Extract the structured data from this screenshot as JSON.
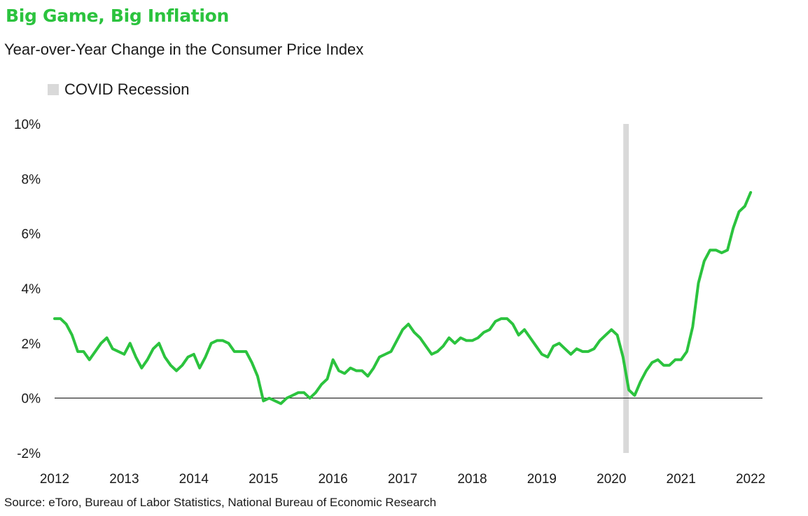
{
  "title": "Big Game, Big Inflation",
  "subtitle": "Year-over-Year Change in the Consumer Price Index",
  "source": "Source: eToro, Bureau of Labor Statistics, National Bureau of Economic Research",
  "colors": {
    "line": "#2BC33E",
    "title": "#2BC33E",
    "recession": "#D9D9D9",
    "zero_line": "#000000"
  },
  "chart_data": {
    "type": "line",
    "title": "Big Game, Big Inflation",
    "subtitle": "Year-over-Year Change in the Consumer Price Index",
    "xlabel": "",
    "ylabel": "",
    "xlim": [
      2012,
      2022.17
    ],
    "ylim": [
      -2,
      10
    ],
    "x_ticks": [
      2012,
      2013,
      2014,
      2015,
      2016,
      2017,
      2018,
      2019,
      2020,
      2021,
      2022
    ],
    "y_ticks": [
      10,
      8,
      6,
      4,
      2,
      0,
      -2
    ],
    "y_tick_labels": [
      "10%",
      "8%",
      "6%",
      "4%",
      "2%",
      "0%",
      "-2%"
    ],
    "grid": false,
    "legend_position": "top-left",
    "recession": {
      "label": "COVID Recession",
      "start": 2020.17,
      "end": 2020.25
    },
    "series": [
      {
        "name": "",
        "values": [
          2.9,
          2.9,
          2.7,
          2.3,
          1.7,
          1.7,
          1.4,
          1.7,
          2.0,
          2.2,
          1.8,
          1.7,
          1.6,
          2.0,
          1.5,
          1.1,
          1.4,
          1.8,
          2.0,
          1.5,
          1.2,
          1.0,
          1.2,
          1.5,
          1.6,
          1.1,
          1.5,
          2.0,
          2.1,
          2.1,
          2.0,
          1.7,
          1.7,
          1.7,
          1.3,
          0.8,
          -0.1,
          0.0,
          -0.1,
          -0.2,
          0.0,
          0.1,
          0.2,
          0.2,
          0.0,
          0.2,
          0.5,
          0.7,
          1.4,
          1.0,
          0.9,
          1.1,
          1.0,
          1.0,
          0.8,
          1.1,
          1.5,
          1.6,
          1.7,
          2.1,
          2.5,
          2.7,
          2.4,
          2.2,
          1.9,
          1.6,
          1.7,
          1.9,
          2.2,
          2.0,
          2.2,
          2.1,
          2.1,
          2.2,
          2.4,
          2.5,
          2.8,
          2.9,
          2.9,
          2.7,
          2.3,
          2.5,
          2.2,
          1.9,
          1.6,
          1.5,
          1.9,
          2.0,
          1.8,
          1.6,
          1.8,
          1.7,
          1.7,
          1.8,
          2.1,
          2.3,
          2.5,
          2.3,
          1.5,
          0.3,
          0.1,
          0.6,
          1.0,
          1.3,
          1.4,
          1.2,
          1.2,
          1.4,
          1.4,
          1.7,
          2.6,
          4.2,
          5.0,
          5.4,
          5.4,
          5.3,
          5.4,
          6.2,
          6.8,
          7.0,
          7.5
        ]
      }
    ]
  }
}
